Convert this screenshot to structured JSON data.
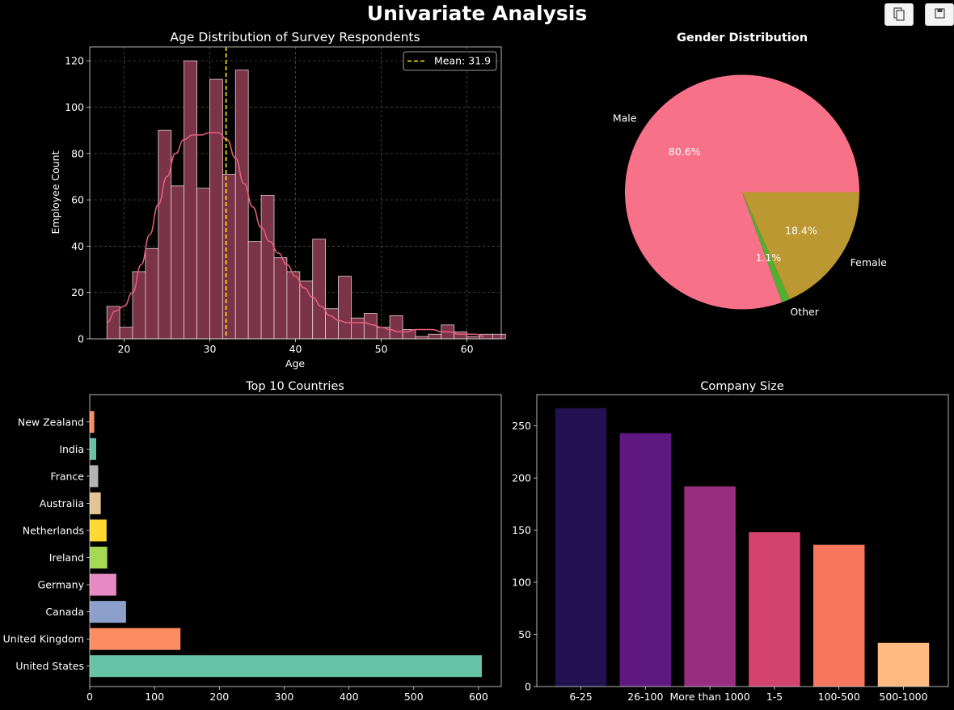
{
  "figure": {
    "title": "Univariate Analysis"
  },
  "toolbar": {
    "copy_icon": "copy-icon",
    "save_icon": "save-icon"
  },
  "chart_data": [
    {
      "type": "bar",
      "subtype": "histogram",
      "title": "Age Distribution of Survey Respondents",
      "xlabel": "Age",
      "ylabel": "Employee Count",
      "xlim": [
        16,
        64
      ],
      "ylim": [
        0,
        126
      ],
      "xticks": [
        20,
        30,
        40,
        50,
        60
      ],
      "yticks": [
        0,
        20,
        40,
        60,
        80,
        100,
        120
      ],
      "bin_start": 18,
      "bin_width": 1.5,
      "values": [
        14,
        5,
        29,
        39,
        90,
        66,
        120,
        65,
        112,
        71,
        116,
        42,
        62,
        35,
        29,
        25,
        43,
        13,
        27,
        9,
        11,
        5,
        10,
        4,
        1,
        2,
        6,
        3,
        1,
        2,
        2
      ],
      "kde": {
        "x": [
          18,
          19,
          20,
          21,
          22,
          23,
          24,
          25,
          26,
          27,
          28,
          29,
          30,
          31,
          32,
          33,
          34,
          35,
          36,
          37,
          38,
          39,
          40,
          41,
          42,
          43,
          44,
          45,
          46,
          47,
          48,
          49,
          50,
          51,
          52,
          53,
          54,
          55,
          56,
          57,
          58,
          59,
          60,
          61,
          62
        ],
        "y": [
          7,
          12,
          14,
          20,
          32,
          45,
          58,
          70,
          80,
          86,
          88,
          88,
          89,
          89,
          86,
          78,
          67,
          57,
          48,
          42,
          37,
          32,
          27,
          22,
          18,
          14,
          10,
          8,
          7,
          7,
          7,
          6,
          5,
          4,
          3,
          3,
          4,
          4,
          4,
          3,
          3,
          2,
          2,
          2,
          1
        ]
      },
      "mean_line": {
        "value": 31.9,
        "label": "Mean: 31.9"
      },
      "grid": true,
      "legend_position": "upper right",
      "colors": {
        "bar": "#7a3347",
        "bar_edge": "#e8d0d8",
        "kde": "#e8607c",
        "mean": "#ffee00",
        "grid": "#5a5a5a"
      }
    },
    {
      "type": "pie",
      "title": "Gender Distribution",
      "labels": [
        "Male",
        "Other",
        "Female"
      ],
      "values": [
        80.6,
        1.1,
        18.4
      ],
      "autopct": [
        "80.6%",
        "1.1%",
        "18.4%"
      ],
      "colors": [
        "#f77189",
        "#50b131",
        "#bb9832"
      ]
    },
    {
      "type": "bar",
      "orientation": "horizontal",
      "title": "Top 10 Countries",
      "categories": [
        "United States",
        "United Kingdom",
        "Canada",
        "Germany",
        "Ireland",
        "Netherlands",
        "Australia",
        "France",
        "India",
        "New Zealand"
      ],
      "values": [
        605,
        140,
        56,
        41,
        27,
        26,
        17,
        13,
        10,
        7
      ],
      "xlim": [
        0,
        635
      ],
      "xticks": [
        0,
        100,
        200,
        300,
        400,
        500,
        600
      ],
      "colors": [
        "#66c2a5",
        "#fc8d62",
        "#8da0cb",
        "#e78ac3",
        "#a6d854",
        "#ffd92f",
        "#e5c494",
        "#b3b3b3",
        "#66c2a5",
        "#fc8d62"
      ]
    },
    {
      "type": "bar",
      "title": "Company Size",
      "categories": [
        "6-25",
        "26-100",
        "More than 1000",
        "1-5",
        "100-500",
        "500-1000"
      ],
      "values": [
        267,
        243,
        192,
        148,
        136,
        42
      ],
      "ylim": [
        0,
        280
      ],
      "yticks": [
        0,
        50,
        100,
        150,
        200,
        250
      ],
      "colors": [
        "#221150",
        "#5f187f",
        "#982d80",
        "#d3436e",
        "#f8765c",
        "#febb81"
      ]
    }
  ]
}
